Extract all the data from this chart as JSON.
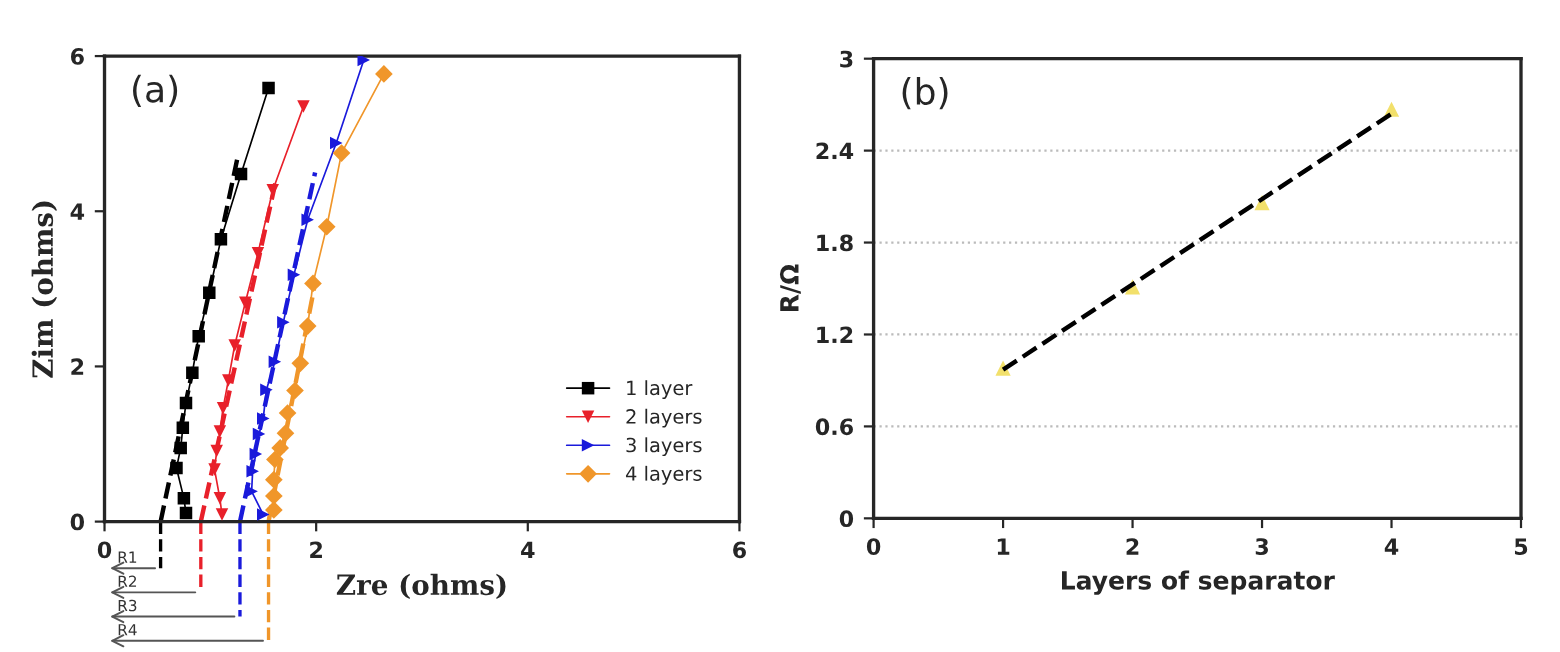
{
  "chart_data": [
    {
      "type": "line",
      "xlabel": "Zre (ohms)",
      "ylabel": "Zim (ohms)",
      "xlim": [
        0,
        6
      ],
      "ylim": [
        0,
        6
      ],
      "xticks": [
        0,
        2,
        4,
        6
      ],
      "yticks": [
        0,
        2,
        4,
        6
      ],
      "grid": false,
      "legend": "bottom right",
      "series": [
        {
          "name": "1 layer",
          "color": "#000000",
          "marker": "square",
          "x": [
            0.77,
            0.75,
            0.68,
            0.72,
            0.74,
            0.77,
            0.83,
            0.89,
            0.99,
            1.1,
            1.29,
            1.55
          ],
          "values": [
            0.11,
            0.3,
            0.69,
            0.95,
            1.21,
            1.53,
            1.92,
            2.39,
            2.95,
            3.64,
            4.48,
            5.59
          ]
        },
        {
          "name": "2 layers",
          "color": "#e8202a",
          "marker": "triangle_down",
          "x": [
            1.11,
            1.09,
            1.04,
            1.06,
            1.09,
            1.12,
            1.17,
            1.23,
            1.33,
            1.45,
            1.59,
            1.88
          ],
          "values": [
            0.09,
            0.3,
            0.67,
            0.91,
            1.16,
            1.46,
            1.82,
            2.27,
            2.82,
            3.46,
            4.27,
            5.35
          ]
        },
        {
          "name": "3 layers",
          "color": "#1a1adb",
          "marker": "triangle_right",
          "x": [
            1.5,
            1.39,
            1.4,
            1.43,
            1.46,
            1.5,
            1.53,
            1.61,
            1.69,
            1.79,
            1.92,
            2.19,
            2.45
          ],
          "values": [
            0.09,
            0.39,
            0.65,
            0.87,
            1.13,
            1.33,
            1.7,
            2.06,
            2.57,
            3.18,
            3.89,
            4.88,
            5.95
          ]
        },
        {
          "name": "4 layers",
          "color": "#f0962a",
          "marker": "diamond",
          "x": [
            1.6,
            1.6,
            1.6,
            1.61,
            1.66,
            1.71,
            1.73,
            1.8,
            1.85,
            1.92,
            1.97,
            2.1,
            2.24,
            2.64
          ],
          "values": [
            0.15,
            0.33,
            0.54,
            0.8,
            0.95,
            1.14,
            1.4,
            1.69,
            2.04,
            2.52,
            3.07,
            3.8,
            4.75,
            5.77
          ]
        },
        {
          "color": "#000000",
          "marker": "none",
          "line_style": "dashed",
          "x": [
            0.53,
            1.26
          ],
          "values": [
            0,
            4.71
          ]
        },
        {
          "color": "#e8202a",
          "marker": "none",
          "line_style": "dashed",
          "x": [
            0.91,
            1.62
          ],
          "values": [
            0,
            4.4
          ]
        },
        {
          "color": "#1a1adb",
          "marker": "none",
          "line_style": "dashed",
          "x": [
            1.28,
            1.99
          ],
          "values": [
            0,
            4.5
          ]
        },
        {
          "color": "#f0962a",
          "marker": "none",
          "line_style": "dashed",
          "x": [
            1.55,
            1.98
          ],
          "values": [
            0,
            3.0
          ]
        }
      ],
      "annotations": [
        "(a)",
        "R1",
        "R2",
        "R3",
        "R4"
      ]
    },
    {
      "type": "scatter",
      "xlabel": "Layers of separator",
      "ylabel": "R/Ω",
      "xlim": [
        0,
        5
      ],
      "ylim": [
        0,
        3
      ],
      "xticks": [
        0,
        1,
        2,
        3,
        4,
        5
      ],
      "yticks": [
        0,
        0.6,
        1.2,
        1.8,
        2.4,
        3
      ],
      "grid": "y",
      "legend": false,
      "series": [
        {
          "color": "#f2e06b",
          "marker": "triangle",
          "x": [
            1,
            2,
            3,
            4
          ],
          "values": [
            0.98,
            1.51,
            2.06,
            2.67
          ]
        },
        {
          "type": "line",
          "color": "#000000",
          "marker": "none",
          "line_style": "dashed",
          "x": [
            1,
            4
          ],
          "values": [
            0.97,
            2.64
          ]
        }
      ],
      "annotations": [
        "(b)"
      ]
    }
  ]
}
